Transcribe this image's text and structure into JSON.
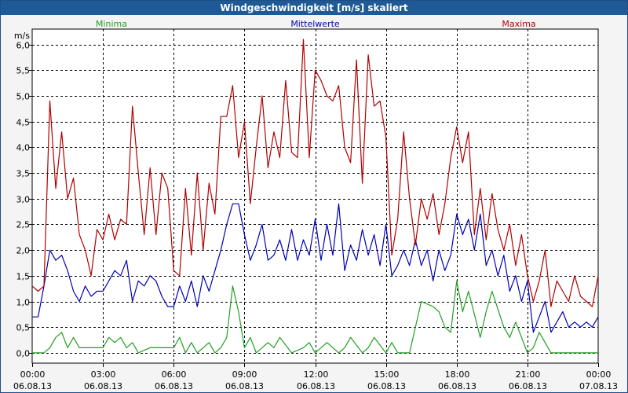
{
  "title": "Windgeschwindigkeit [m/s] skaliert",
  "colors": {
    "min": "#22a022",
    "mean": "#0000b4",
    "max": "#b00000",
    "grid": "#000000",
    "title_bg": "#1f5a96"
  },
  "chart_data": {
    "type": "line",
    "title": "Windgeschwindigkeit [m/s] skaliert",
    "ylabel": "m/s",
    "xlabel": "",
    "ylim": [
      -0.2,
      6.3
    ],
    "xlim": [
      0,
      24
    ],
    "grid": true,
    "legend": [
      "Minima",
      "Mittelwerte",
      "Maxima"
    ],
    "yticks": [
      0,
      0.5,
      1,
      1.5,
      2,
      2.5,
      3,
      3.5,
      4,
      4.5,
      5,
      5.5,
      6
    ],
    "ytick_labels": [
      "0,0",
      "0,5",
      "1,0",
      "1,5",
      "2,0",
      "2,5",
      "3,0",
      "3,5",
      "4,0",
      "4,5",
      "5,0",
      "5,5",
      "6,0"
    ],
    "xticks": [
      0,
      3,
      6,
      9,
      12,
      15,
      18,
      21,
      24
    ],
    "xtick_labels": [
      {
        "time": "00:00",
        "date": "06.08.13"
      },
      {
        "time": "03:00",
        "date": "06.08.13"
      },
      {
        "time": "06:00",
        "date": "06.08.13"
      },
      {
        "time": "09:00",
        "date": "06.08.13"
      },
      {
        "time": "12:00",
        "date": "06.08.13"
      },
      {
        "time": "15:00",
        "date": "06.08.13"
      },
      {
        "time": "18:00",
        "date": "06.08.13"
      },
      {
        "time": "21:00",
        "date": "06.08.13"
      },
      {
        "time": "00:00",
        "date": "07.08.13"
      }
    ],
    "series": [
      {
        "name": "Minima",
        "color": "#22a022",
        "x": [
          0,
          0.5,
          0.75,
          1,
          1.25,
          1.5,
          1.75,
          2,
          3,
          3.25,
          3.5,
          3.75,
          4,
          4.25,
          4.5,
          5,
          6,
          6.25,
          6.5,
          6.75,
          7,
          7.25,
          7.5,
          7.75,
          8,
          8.25,
          8.5,
          8.75,
          9,
          9.25,
          9.5,
          10,
          10.25,
          10.5,
          11,
          11.5,
          11.75,
          12,
          12.25,
          12.5,
          13,
          13.25,
          13.5,
          14,
          14.25,
          14.5,
          15,
          15.25,
          15.5,
          16,
          16.25,
          16.5,
          17,
          17.25,
          17.5,
          17.75,
          18,
          18.25,
          18.5,
          19,
          19.25,
          19.5,
          20,
          20.25,
          20.5,
          21,
          21.25,
          21.5,
          22,
          24
        ],
        "values": [
          0.0,
          0.0,
          0.1,
          0.3,
          0.4,
          0.1,
          0.3,
          0.1,
          0.1,
          0.3,
          0.2,
          0.3,
          0.1,
          0.2,
          0.0,
          0.1,
          0.1,
          0.3,
          0.0,
          0.2,
          0.0,
          0.1,
          0.2,
          0.0,
          0.1,
          0.3,
          1.3,
          0.8,
          0.1,
          0.3,
          0.0,
          0.2,
          0.1,
          0.3,
          0.0,
          0.1,
          0.2,
          0.0,
          0.1,
          0.2,
          0.0,
          0.1,
          0.3,
          0.0,
          0.1,
          0.3,
          0.0,
          0.2,
          0.0,
          0.0,
          0.5,
          1.0,
          0.9,
          0.8,
          0.5,
          0.4,
          1.4,
          0.8,
          1.2,
          0.3,
          0.8,
          1.2,
          0.5,
          0.3,
          0.6,
          0.0,
          0.1,
          0.4,
          0.0,
          0.0
        ]
      },
      {
        "name": "Mittelwerte",
        "color": "#0000b4",
        "x": [
          0,
          0.25,
          0.5,
          0.75,
          1,
          1.25,
          1.5,
          1.75,
          2,
          2.25,
          2.5,
          2.75,
          3,
          3.25,
          3.5,
          3.75,
          4,
          4.25,
          4.5,
          4.75,
          5,
          5.25,
          5.5,
          5.75,
          6,
          6.25,
          6.5,
          6.75,
          7,
          7.25,
          7.5,
          7.75,
          8,
          8.25,
          8.5,
          8.75,
          9,
          9.25,
          9.5,
          9.75,
          10,
          10.25,
          10.5,
          10.75,
          11,
          11.25,
          11.5,
          11.75,
          12,
          12.25,
          12.5,
          12.75,
          13,
          13.25,
          13.5,
          13.75,
          14,
          14.25,
          14.5,
          14.75,
          15,
          15.25,
          15.5,
          15.75,
          16,
          16.25,
          16.5,
          16.75,
          17,
          17.25,
          17.5,
          17.75,
          18,
          18.25,
          18.5,
          18.75,
          19,
          19.25,
          19.5,
          19.75,
          20,
          20.25,
          20.5,
          20.75,
          21,
          21.25,
          21.5,
          21.75,
          22,
          22.25,
          22.5,
          22.75,
          23,
          23.25,
          23.5,
          23.75,
          24
        ],
        "values": [
          0.7,
          0.7,
          1.3,
          2.0,
          1.8,
          1.9,
          1.6,
          1.2,
          1.0,
          1.3,
          1.1,
          1.2,
          1.2,
          1.4,
          1.6,
          1.5,
          1.8,
          1.0,
          1.4,
          1.3,
          1.5,
          1.4,
          1.1,
          0.9,
          0.9,
          1.3,
          1.0,
          1.4,
          0.9,
          1.5,
          1.2,
          1.6,
          2.0,
          2.5,
          2.9,
          2.9,
          2.3,
          1.8,
          2.1,
          2.5,
          1.8,
          1.9,
          2.2,
          1.8,
          2.4,
          1.8,
          2.2,
          1.9,
          2.6,
          1.8,
          2.5,
          1.9,
          2.9,
          1.6,
          2.1,
          1.8,
          2.4,
          1.9,
          2.3,
          1.7,
          2.5,
          1.5,
          1.7,
          2.0,
          1.7,
          2.2,
          1.7,
          2.0,
          1.4,
          2.0,
          1.6,
          1.9,
          2.7,
          2.3,
          2.6,
          2.0,
          2.7,
          1.7,
          2.0,
          1.5,
          1.9,
          1.2,
          1.5,
          1.0,
          1.4,
          0.4,
          0.7,
          1.0,
          0.4,
          0.6,
          0.8,
          0.5,
          0.6,
          0.5,
          0.6,
          0.5,
          0.7
        ]
      },
      {
        "name": "Maxima",
        "color": "#b00000",
        "x": [
          0,
          0.25,
          0.5,
          0.75,
          1,
          1.25,
          1.5,
          1.75,
          2,
          2.25,
          2.5,
          2.75,
          3,
          3.25,
          3.5,
          3.75,
          4,
          4.25,
          4.5,
          4.75,
          5,
          5.25,
          5.5,
          5.75,
          6,
          6.25,
          6.5,
          6.75,
          7,
          7.25,
          7.5,
          7.75,
          8,
          8.25,
          8.5,
          8.75,
          9,
          9.25,
          9.5,
          9.75,
          10,
          10.25,
          10.5,
          10.75,
          11,
          11.25,
          11.5,
          11.75,
          12,
          12.25,
          12.5,
          12.75,
          13,
          13.25,
          13.5,
          13.75,
          14,
          14.25,
          14.5,
          14.75,
          15,
          15.25,
          15.5,
          15.75,
          16,
          16.25,
          16.5,
          16.75,
          17,
          17.25,
          17.5,
          17.75,
          18,
          18.25,
          18.5,
          18.75,
          19,
          19.25,
          19.5,
          19.75,
          20,
          20.25,
          20.5,
          20.75,
          21,
          21.25,
          21.5,
          21.75,
          22,
          22.25,
          22.5,
          22.75,
          23,
          23.25,
          23.5,
          23.75,
          24
        ],
        "values": [
          1.3,
          1.2,
          1.3,
          4.9,
          3.2,
          4.3,
          3.0,
          3.4,
          2.3,
          2.0,
          1.5,
          2.4,
          2.2,
          2.7,
          2.2,
          2.6,
          2.5,
          4.8,
          3.5,
          2.3,
          3.6,
          2.3,
          3.5,
          3.2,
          1.6,
          1.5,
          3.2,
          1.9,
          3.5,
          2.0,
          3.3,
          2.7,
          4.6,
          4.6,
          5.2,
          3.8,
          4.5,
          2.9,
          4.0,
          5.0,
          3.6,
          4.3,
          3.8,
          5.3,
          3.9,
          3.8,
          6.1,
          3.8,
          5.5,
          5.3,
          5.0,
          4.9,
          5.2,
          4.0,
          3.7,
          5.7,
          3.3,
          5.8,
          4.8,
          4.9,
          4.2,
          1.9,
          2.6,
          4.3,
          3.0,
          2.1,
          3.0,
          2.6,
          3.1,
          2.3,
          2.9,
          3.8,
          4.4,
          3.7,
          4.3,
          2.3,
          3.2,
          2.2,
          3.1,
          2.4,
          2.0,
          2.5,
          1.7,
          2.3,
          1.5,
          1.0,
          1.4,
          2.0,
          0.9,
          1.4,
          1.2,
          1.0,
          1.5,
          1.1,
          1.0,
          0.9,
          1.5
        ]
      }
    ]
  }
}
